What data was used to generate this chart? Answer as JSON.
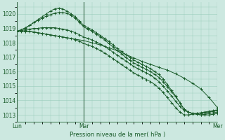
{
  "title": "",
  "xlabel": "Pression niveau de la mer( hPa )",
  "background_color": "#cce8e0",
  "grid_color": "#99ccbb",
  "line_color": "#1a5c2a",
  "xlim": [
    0,
    48
  ],
  "ylim": [
    1012.5,
    1020.8
  ],
  "yticks": [
    1013,
    1014,
    1015,
    1016,
    1017,
    1018,
    1019,
    1020
  ],
  "xtick_positions": [
    0,
    16,
    40,
    48
  ],
  "xtick_labels": [
    "Lun",
    "Mar",
    "",
    "Mer"
  ],
  "vline_positions": [
    0,
    16,
    48
  ],
  "series": [
    {
      "x": [
        0,
        1,
        2,
        3,
        4,
        5,
        6,
        7,
        8,
        9,
        10,
        11,
        12,
        13,
        14,
        15,
        16,
        17,
        18,
        19,
        20,
        21,
        22,
        23,
        24,
        25,
        26,
        27,
        28,
        29,
        30,
        31,
        32,
        33,
        34,
        35,
        36,
        37,
        38,
        39,
        40,
        41,
        42,
        43,
        44,
        45,
        46,
        47,
        48
      ],
      "y": [
        1018.8,
        1018.9,
        1019.0,
        1019.2,
        1019.4,
        1019.6,
        1019.8,
        1020.0,
        1020.2,
        1020.35,
        1020.4,
        1020.35,
        1020.2,
        1020.0,
        1019.8,
        1019.5,
        1019.2,
        1019.05,
        1018.9,
        1018.7,
        1018.5,
        1018.3,
        1018.1,
        1017.85,
        1017.6,
        1017.4,
        1017.2,
        1017.0,
        1016.8,
        1016.65,
        1016.5,
        1016.35,
        1016.2,
        1016.0,
        1015.8,
        1015.5,
        1015.1,
        1014.7,
        1014.3,
        1013.85,
        1013.4,
        1013.2,
        1013.1,
        1013.05,
        1013.0,
        1013.0,
        1013.0,
        1013.05,
        1013.1
      ]
    },
    {
      "x": [
        0,
        1,
        2,
        3,
        4,
        5,
        6,
        7,
        8,
        9,
        10,
        11,
        12,
        13,
        14,
        15,
        16,
        17,
        18,
        19,
        20,
        21,
        22,
        23,
        24,
        25,
        26,
        27,
        28,
        29,
        30,
        31,
        32,
        33,
        34,
        35,
        36,
        37,
        38,
        39,
        40,
        41,
        42,
        43,
        44,
        45,
        46,
        47,
        48
      ],
      "y": [
        1018.8,
        1018.9,
        1019.05,
        1019.2,
        1019.4,
        1019.55,
        1019.7,
        1019.85,
        1019.95,
        1020.05,
        1020.1,
        1020.1,
        1020.05,
        1019.9,
        1019.7,
        1019.4,
        1019.1,
        1018.95,
        1018.8,
        1018.6,
        1018.4,
        1018.2,
        1017.95,
        1017.7,
        1017.45,
        1017.25,
        1017.0,
        1016.8,
        1016.6,
        1016.45,
        1016.3,
        1016.15,
        1016.0,
        1015.8,
        1015.6,
        1015.3,
        1014.95,
        1014.6,
        1014.25,
        1013.85,
        1013.4,
        1013.2,
        1013.1,
        1013.05,
        1013.0,
        1013.05,
        1013.1,
        1013.15,
        1013.2
      ]
    },
    {
      "x": [
        0,
        1,
        2,
        3,
        4,
        5,
        6,
        7,
        8,
        9,
        10,
        11,
        12,
        13,
        14,
        15,
        16,
        17,
        18,
        19,
        20,
        21,
        22,
        23,
        24,
        25,
        26,
        27,
        28,
        29,
        30,
        31,
        32,
        33,
        34,
        35,
        36,
        37,
        38,
        39,
        40,
        41,
        42,
        43,
        44,
        45,
        46,
        47,
        48
      ],
      "y": [
        1018.8,
        1018.85,
        1018.9,
        1018.95,
        1019.0,
        1019.0,
        1019.05,
        1019.05,
        1019.05,
        1019.05,
        1019.0,
        1018.95,
        1018.9,
        1018.8,
        1018.7,
        1018.55,
        1018.4,
        1018.3,
        1018.2,
        1018.05,
        1017.9,
        1017.75,
        1017.55,
        1017.35,
        1017.15,
        1016.95,
        1016.75,
        1016.55,
        1016.35,
        1016.2,
        1016.05,
        1015.9,
        1015.75,
        1015.55,
        1015.3,
        1015.0,
        1014.65,
        1014.3,
        1013.95,
        1013.6,
        1013.3,
        1013.2,
        1013.1,
        1013.1,
        1013.1,
        1013.15,
        1013.2,
        1013.25,
        1013.3
      ]
    },
    {
      "x": [
        0,
        1,
        2,
        3,
        4,
        5,
        6,
        7,
        8,
        9,
        10,
        11,
        12,
        13,
        14,
        15,
        16,
        17,
        18,
        19,
        20,
        21,
        22,
        23,
        24,
        25,
        26,
        27,
        28,
        29,
        30,
        31,
        32,
        33,
        34,
        35,
        36,
        37,
        38,
        39,
        40,
        41,
        42,
        43,
        44,
        45,
        46,
        47,
        48
      ],
      "y": [
        1018.8,
        1018.8,
        1018.8,
        1018.8,
        1018.75,
        1018.7,
        1018.65,
        1018.6,
        1018.55,
        1018.5,
        1018.45,
        1018.4,
        1018.35,
        1018.3,
        1018.2,
        1018.1,
        1017.95,
        1017.85,
        1017.75,
        1017.6,
        1017.45,
        1017.3,
        1017.1,
        1016.9,
        1016.7,
        1016.5,
        1016.3,
        1016.1,
        1015.9,
        1015.75,
        1015.6,
        1015.45,
        1015.3,
        1015.1,
        1014.85,
        1014.55,
        1014.2,
        1013.85,
        1013.5,
        1013.2,
        1013.0,
        1013.0,
        1013.05,
        1013.1,
        1013.15,
        1013.2,
        1013.25,
        1013.3,
        1013.35
      ]
    },
    {
      "x": [
        0,
        2,
        4,
        6,
        8,
        10,
        12,
        14,
        16,
        18,
        20,
        22,
        24,
        26,
        28,
        30,
        32,
        34,
        36,
        38,
        40,
        42,
        44,
        46,
        48
      ],
      "y": [
        1018.8,
        1018.8,
        1018.75,
        1018.65,
        1018.55,
        1018.45,
        1018.35,
        1018.25,
        1018.15,
        1018.0,
        1017.85,
        1017.65,
        1017.45,
        1017.2,
        1016.95,
        1016.7,
        1016.5,
        1016.3,
        1016.1,
        1015.85,
        1015.55,
        1015.2,
        1014.8,
        1014.2,
        1013.5
      ]
    }
  ]
}
